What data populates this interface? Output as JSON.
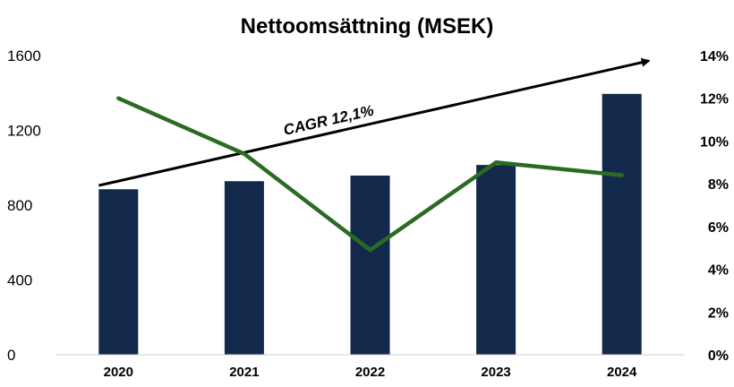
{
  "chart_data": {
    "type": "bar",
    "title": "Nettoomsättning (MSEK)",
    "categories": [
      "2020",
      "2021",
      "2022",
      "2023",
      "2024"
    ],
    "series": [
      {
        "values": [
          885,
          928,
          958,
          1015,
          1395
        ],
        "type": "bar",
        "axis": "left",
        "color": "#13294b"
      },
      {
        "values": [
          0.12,
          0.094,
          0.049,
          0.09,
          0.084
        ],
        "type": "line",
        "axis": "right",
        "color": "#2a6b22"
      }
    ],
    "y_left": {
      "ylim": [
        0,
        1600
      ],
      "ticks": [
        0,
        400,
        800,
        1200,
        1600
      ],
      "tick_labels": [
        "0",
        "400",
        "800",
        "1200",
        "1600"
      ]
    },
    "y_right": {
      "ylim": [
        0,
        0.14
      ],
      "ticks": [
        0,
        0.02,
        0.04,
        0.06,
        0.08,
        0.1,
        0.12,
        0.14
      ],
      "tick_labels": [
        "0%",
        "2%",
        "4%",
        "6%",
        "8%",
        "10%",
        "12%",
        "14%"
      ]
    },
    "annotation": {
      "text": "CAGR 12,1%",
      "arrow_start": {
        "category": "2020",
        "value": 905
      },
      "arrow_end": {
        "category": "2024",
        "value": 1495
      },
      "arrow_color": "#000000"
    },
    "grid": false,
    "legend": "none"
  }
}
